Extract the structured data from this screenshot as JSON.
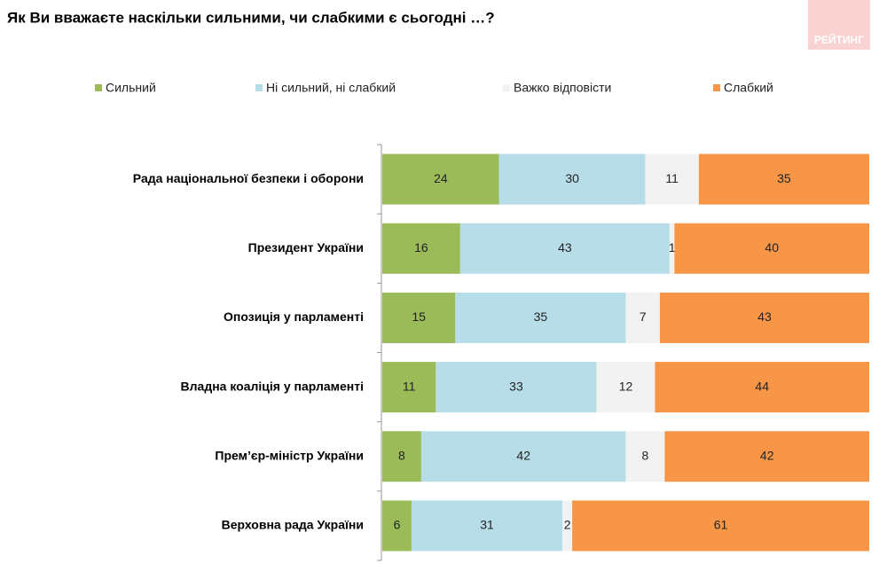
{
  "logo": "РЕЙТИНГ",
  "chart_data": {
    "type": "stacked-bar-horizontal",
    "title": "Як Ви вважаєте наскільки сильними, чи слабкими є сьогодні …?",
    "categories": [
      "Рада національної безпеки і оборони",
      "Президент України",
      "Опозиція у парламенті",
      "Владна коаліція у парламенті",
      "Прем’єр-міністр України",
      "Верховна рада України"
    ],
    "series": [
      {
        "name": "Сильний",
        "color": "#9bbb59",
        "values": [
          24,
          16,
          15,
          11,
          8,
          6
        ]
      },
      {
        "name": "Ні сильний, ні слабкий",
        "color": "#b7dde8",
        "values": [
          30,
          43,
          35,
          33,
          42,
          31
        ]
      },
      {
        "name": "Важко відповісти",
        "color": "#f2f2f2",
        "values": [
          11,
          1,
          7,
          12,
          8,
          2
        ]
      },
      {
        "name": "Слабкий",
        "color": "#f79646",
        "values": [
          35,
          40,
          43,
          44,
          42,
          61
        ]
      }
    ]
  }
}
